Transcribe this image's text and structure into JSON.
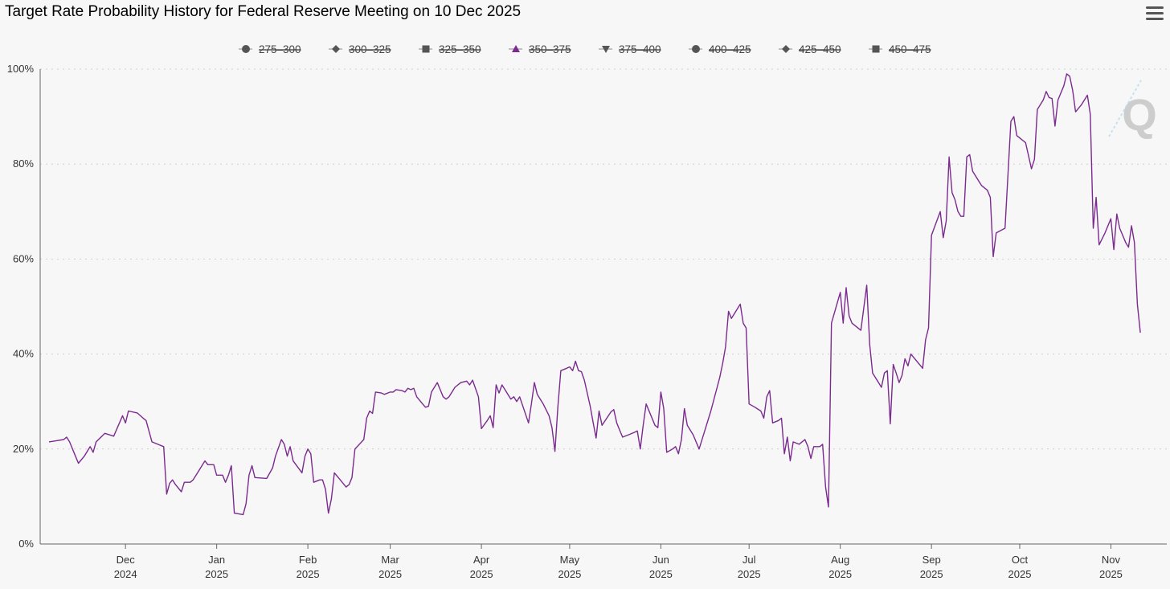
{
  "header": {
    "title": "Target Rate Probability History for Federal Reserve Meeting on 10 Dec 2025",
    "menu_icon": "hamburger-menu-icon"
  },
  "colors": {
    "series": "#7b2a8f",
    "legend_marker": "#555555",
    "legend_active_marker": "#7b2a8f",
    "grid": "#cfcfcf",
    "axis": "#666666"
  },
  "chart_data": {
    "type": "line",
    "title": "Target Rate Probability History for Federal Reserve Meeting on 10 Dec 2025",
    "xlabel": "",
    "ylabel": "",
    "ylim": [
      0,
      100
    ],
    "y_ticks": [
      "0%",
      "20%",
      "40%",
      "60%",
      "80%",
      "100%"
    ],
    "grid": true,
    "legend_position": "top-center",
    "legend": [
      {
        "name": "275–300",
        "marker": "circle",
        "active": false
      },
      {
        "name": "300–325",
        "marker": "diamond",
        "active": false
      },
      {
        "name": "325–350",
        "marker": "square",
        "active": false
      },
      {
        "name": "350–375",
        "marker": "triangle-up",
        "active": true
      },
      {
        "name": "375–400",
        "marker": "triangle-down",
        "active": false
      },
      {
        "name": "400–425",
        "marker": "circle",
        "active": false
      },
      {
        "name": "425–450",
        "marker": "diamond",
        "active": false
      },
      {
        "name": "450–475",
        "marker": "square",
        "active": false
      }
    ],
    "x_ticks": [
      {
        "month": "Dec",
        "year": "2024",
        "day": 29
      },
      {
        "month": "Jan",
        "year": "2025",
        "day": 60
      },
      {
        "month": "Feb",
        "year": "2025",
        "day": 91
      },
      {
        "month": "Mar",
        "year": "2025",
        "day": 119
      },
      {
        "month": "Apr",
        "year": "2025",
        "day": 150
      },
      {
        "month": "May",
        "year": "2025",
        "day": 180
      },
      {
        "month": "Jun",
        "year": "2025",
        "day": 211
      },
      {
        "month": "Jul",
        "year": "2025",
        "day": 241
      },
      {
        "month": "Aug",
        "year": "2025",
        "day": 272
      },
      {
        "month": "Sep",
        "year": "2025",
        "day": 303
      },
      {
        "month": "Oct",
        "year": "2025",
        "day": 333
      },
      {
        "month": "Nov",
        "year": "2025",
        "day": 364
      }
    ],
    "x_range": [
      0,
      383
    ],
    "series": [
      {
        "name": "350–375",
        "points": [
          [
            3,
            21.5
          ],
          [
            6,
            21.8
          ],
          [
            8,
            22.0
          ],
          [
            9,
            22.5
          ],
          [
            10,
            21.5
          ],
          [
            12,
            18.5
          ],
          [
            13,
            17.0
          ],
          [
            15,
            18.5
          ],
          [
            17,
            20.5
          ],
          [
            18,
            19.3
          ],
          [
            19,
            21.5
          ],
          [
            22,
            23.3
          ],
          [
            25,
            22.7
          ],
          [
            28,
            27.0
          ],
          [
            29,
            25.5
          ],
          [
            30,
            28.0
          ],
          [
            33,
            27.6
          ],
          [
            35,
            26.5
          ],
          [
            36,
            26.0
          ],
          [
            38,
            21.5
          ],
          [
            40,
            21.0
          ],
          [
            42,
            20.5
          ],
          [
            43,
            10.5
          ],
          [
            44,
            12.8
          ],
          [
            45,
            13.5
          ],
          [
            46,
            12.5
          ],
          [
            48,
            11.0
          ],
          [
            49,
            13.0
          ],
          [
            51,
            13.0
          ],
          [
            52,
            13.5
          ],
          [
            54,
            15.5
          ],
          [
            56,
            17.5
          ],
          [
            57,
            16.7
          ],
          [
            59,
            16.7
          ],
          [
            60,
            14.5
          ],
          [
            62,
            14.5
          ],
          [
            63,
            13.0
          ],
          [
            64,
            14.5
          ],
          [
            65,
            16.5
          ],
          [
            66,
            6.5
          ],
          [
            69,
            6.2
          ],
          [
            70,
            8.5
          ],
          [
            71,
            14.5
          ],
          [
            72,
            16.5
          ],
          [
            73,
            14.0
          ],
          [
            77,
            13.8
          ],
          [
            79,
            16.0
          ],
          [
            80,
            18.5
          ],
          [
            82,
            22.0
          ],
          [
            83,
            21.0
          ],
          [
            84,
            18.5
          ],
          [
            85,
            20.5
          ],
          [
            86,
            17.5
          ],
          [
            89,
            15.0
          ],
          [
            90,
            18.5
          ],
          [
            91,
            20.0
          ],
          [
            92,
            19.0
          ],
          [
            93,
            13.0
          ],
          [
            95,
            13.5
          ],
          [
            96,
            13.5
          ],
          [
            97,
            11.5
          ],
          [
            98,
            6.5
          ],
          [
            99,
            9.5
          ],
          [
            100,
            15.0
          ],
          [
            102,
            13.5
          ],
          [
            104,
            12.0
          ],
          [
            105,
            12.5
          ],
          [
            106,
            14.0
          ],
          [
            107,
            20.0
          ],
          [
            110,
            22.0
          ],
          [
            111,
            26.5
          ],
          [
            112,
            28.0
          ],
          [
            113,
            27.5
          ],
          [
            114,
            32.0
          ],
          [
            116,
            31.8
          ],
          [
            117,
            31.5
          ],
          [
            119,
            32.0
          ],
          [
            120,
            32.0
          ],
          [
            121,
            32.5
          ],
          [
            123,
            32.3
          ],
          [
            124,
            32.0
          ],
          [
            125,
            32.8
          ],
          [
            126,
            32.5
          ],
          [
            127,
            32.8
          ],
          [
            128,
            31.0
          ],
          [
            130,
            29.5
          ],
          [
            131,
            28.8
          ],
          [
            132,
            29.0
          ],
          [
            133,
            32.0
          ],
          [
            135,
            34.0
          ],
          [
            136,
            32.5
          ],
          [
            137,
            31.0
          ],
          [
            138,
            30.5
          ],
          [
            139,
            31.0
          ],
          [
            140,
            32.0
          ],
          [
            141,
            33.0
          ],
          [
            143,
            34.0
          ],
          [
            145,
            34.3
          ],
          [
            146,
            33.5
          ],
          [
            147,
            34.5
          ],
          [
            149,
            31.0
          ],
          [
            150,
            24.3
          ],
          [
            152,
            26.0
          ],
          [
            153,
            27.0
          ],
          [
            154,
            24.5
          ],
          [
            155,
            33.5
          ],
          [
            156,
            31.8
          ],
          [
            157,
            33.5
          ],
          [
            158,
            32.5
          ],
          [
            160,
            30.5
          ],
          [
            161,
            31.0
          ],
          [
            162,
            30.0
          ],
          [
            163,
            31.0
          ],
          [
            166,
            25.5
          ],
          [
            167,
            29.5
          ],
          [
            168,
            34.0
          ],
          [
            169,
            31.5
          ],
          [
            171,
            29.5
          ],
          [
            173,
            27.0
          ],
          [
            174,
            24.5
          ],
          [
            175,
            19.5
          ],
          [
            176,
            29.0
          ],
          [
            177,
            36.5
          ],
          [
            179,
            37.0
          ],
          [
            180,
            37.3
          ],
          [
            181,
            36.5
          ],
          [
            182,
            38.5
          ],
          [
            183,
            36.5
          ],
          [
            184,
            36.3
          ],
          [
            185,
            34.5
          ],
          [
            187,
            29.0
          ],
          [
            188,
            25.5
          ],
          [
            189,
            22.3
          ],
          [
            190,
            28.0
          ],
          [
            191,
            25.0
          ],
          [
            194,
            27.8
          ],
          [
            195,
            28.3
          ],
          [
            196,
            25.5
          ],
          [
            197,
            24.0
          ],
          [
            198,
            22.5
          ],
          [
            200,
            23.0
          ],
          [
            202,
            23.5
          ],
          [
            203,
            23.8
          ],
          [
            204,
            20.0
          ],
          [
            205,
            25.0
          ],
          [
            206,
            29.5
          ],
          [
            209,
            25.0
          ],
          [
            210,
            24.5
          ],
          [
            211,
            32.0
          ],
          [
            212,
            28.5
          ],
          [
            213,
            19.3
          ],
          [
            215,
            20.0
          ],
          [
            216,
            20.5
          ],
          [
            217,
            19.0
          ],
          [
            218,
            22.0
          ],
          [
            219,
            28.5
          ],
          [
            220,
            25.0
          ],
          [
            222,
            23.0
          ],
          [
            224,
            20.0
          ],
          [
            226,
            24.0
          ],
          [
            228,
            28.0
          ],
          [
            231,
            35.0
          ],
          [
            232,
            38.0
          ],
          [
            233,
            41.5
          ],
          [
            234,
            49.0
          ],
          [
            235,
            47.5
          ],
          [
            236,
            48.5
          ],
          [
            238,
            50.5
          ],
          [
            239,
            46.5
          ],
          [
            240,
            45.5
          ],
          [
            241,
            29.5
          ],
          [
            243,
            28.8
          ],
          [
            245,
            28.0
          ],
          [
            246,
            26.5
          ],
          [
            247,
            31.0
          ],
          [
            248,
            32.3
          ],
          [
            249,
            25.5
          ],
          [
            251,
            26.0
          ],
          [
            252,
            26.5
          ],
          [
            253,
            19.0
          ],
          [
            254,
            22.5
          ],
          [
            255,
            17.5
          ],
          [
            256,
            21.5
          ],
          [
            258,
            21.0
          ],
          [
            259,
            21.5
          ],
          [
            260,
            22.0
          ],
          [
            261,
            20.5
          ],
          [
            262,
            18.0
          ],
          [
            263,
            20.5
          ],
          [
            265,
            20.5
          ],
          [
            266,
            21.0
          ],
          [
            267,
            12.0
          ],
          [
            268,
            7.8
          ],
          [
            269,
            46.5
          ],
          [
            272,
            53.0
          ],
          [
            273,
            46.5
          ],
          [
            274,
            54.0
          ],
          [
            275,
            48.0
          ],
          [
            276,
            46.5
          ],
          [
            279,
            45.0
          ],
          [
            281,
            54.5
          ],
          [
            282,
            42.0
          ],
          [
            283,
            36.0
          ],
          [
            285,
            34.0
          ],
          [
            286,
            33.0
          ],
          [
            287,
            36.0
          ],
          [
            288,
            36.5
          ],
          [
            289,
            25.3
          ],
          [
            290,
            37.8
          ],
          [
            291,
            36.0
          ],
          [
            292,
            34.0
          ],
          [
            293,
            35.5
          ],
          [
            294,
            39.0
          ],
          [
            295,
            37.5
          ],
          [
            296,
            40.0
          ],
          [
            300,
            37.0
          ],
          [
            301,
            43.0
          ],
          [
            302,
            45.5
          ],
          [
            303,
            65.0
          ],
          [
            306,
            70.0
          ],
          [
            307,
            64.5
          ],
          [
            308,
            68.0
          ],
          [
            309,
            81.5
          ],
          [
            310,
            74.0
          ],
          [
            311,
            72.5
          ],
          [
            312,
            70.0
          ],
          [
            313,
            69.0
          ],
          [
            314,
            69.0
          ],
          [
            315,
            81.5
          ],
          [
            316,
            82.0
          ],
          [
            317,
            78.5
          ],
          [
            319,
            76.5
          ],
          [
            320,
            75.5
          ],
          [
            322,
            74.5
          ],
          [
            323,
            73.0
          ],
          [
            324,
            60.5
          ],
          [
            325,
            65.5
          ],
          [
            328,
            66.5
          ],
          [
            330,
            89.0
          ],
          [
            331,
            90.0
          ],
          [
            332,
            86.0
          ],
          [
            333,
            85.5
          ],
          [
            335,
            84.5
          ],
          [
            337,
            79.0
          ],
          [
            338,
            81.0
          ],
          [
            339,
            91.5
          ],
          [
            341,
            93.5
          ],
          [
            342,
            95.3
          ],
          [
            343,
            94.0
          ],
          [
            344,
            93.8
          ],
          [
            345,
            88.0
          ],
          [
            346,
            93.5
          ],
          [
            348,
            96.5
          ],
          [
            349,
            99.0
          ],
          [
            350,
            98.5
          ],
          [
            351,
            95.5
          ],
          [
            352,
            91.0
          ],
          [
            354,
            92.5
          ],
          [
            356,
            94.5
          ],
          [
            357,
            90.5
          ],
          [
            358,
            66.5
          ],
          [
            359,
            73.0
          ],
          [
            360,
            63.0
          ],
          [
            362,
            65.5
          ],
          [
            364,
            68.5
          ],
          [
            365,
            62.0
          ],
          [
            366,
            69.5
          ],
          [
            367,
            66.5
          ],
          [
            369,
            63.5
          ],
          [
            370,
            62.5
          ],
          [
            371,
            67.0
          ],
          [
            372,
            63.5
          ],
          [
            373,
            50.5
          ],
          [
            374,
            44.5
          ]
        ]
      }
    ]
  }
}
